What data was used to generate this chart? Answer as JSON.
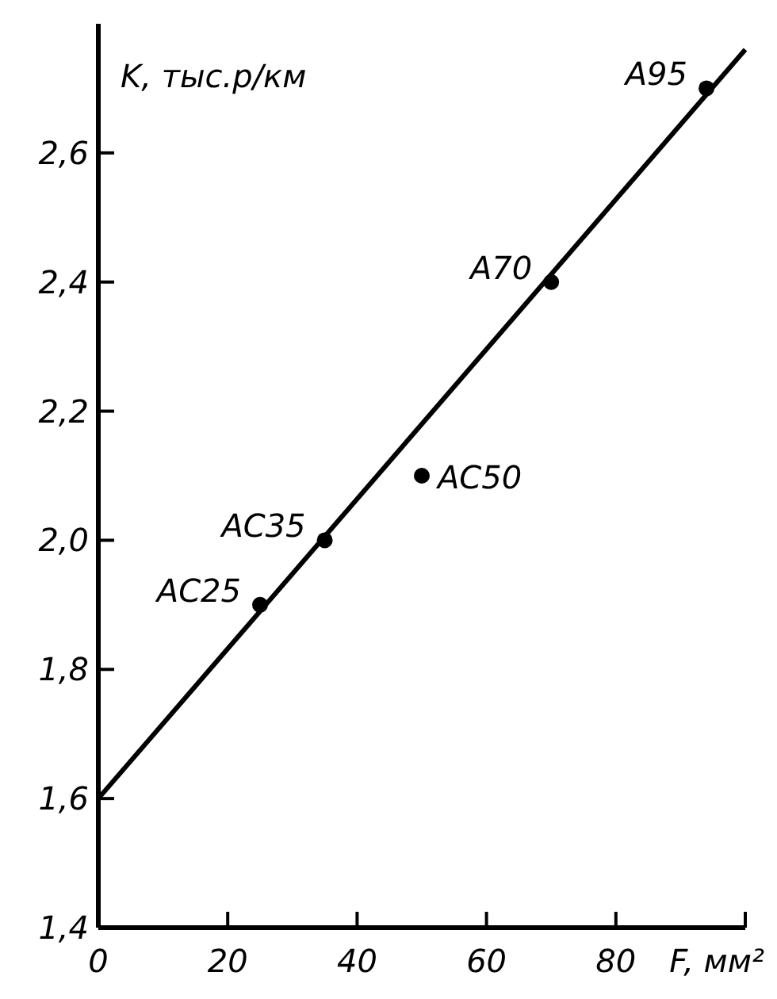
{
  "chart_data": {
    "type": "scatter",
    "xlabel": "F, мм²",
    "ylabel": "K, тыс.р/км",
    "series": [
      {
        "marker": "circle",
        "color": "#000000",
        "x": [
          25,
          35,
          50,
          70,
          94
        ],
        "values": [
          1.9,
          2.0,
          2.1,
          2.4,
          2.7
        ]
      },
      {
        "type": "line",
        "color": "#000000",
        "x": [
          0,
          100
        ],
        "values": [
          1.6,
          2.76
        ]
      }
    ],
    "annotations": [
      {
        "text": "AC25",
        "x": 25,
        "y": 1.9
      },
      {
        "text": "AC35",
        "x": 35,
        "y": 2.0
      },
      {
        "text": "AC50",
        "x": 50,
        "y": 2.1
      },
      {
        "text": "A70",
        "x": 70,
        "y": 2.4
      },
      {
        "text": "A95",
        "x": 94,
        "y": 2.7
      }
    ],
    "line_style": "solid",
    "grid": false,
    "xlim": [
      0,
      100
    ],
    "ylim": [
      1.4,
      2.8
    ],
    "xticks": [
      0,
      20,
      40,
      60,
      80,
      {
        "value": 100,
        "label": null
      }
    ],
    "yticks": [
      {
        "value": 1.4,
        "label": "1,4"
      },
      {
        "value": 1.6,
        "label": "1,6"
      },
      {
        "value": 1.8,
        "label": "1,8"
      },
      {
        "value": 2.0,
        "label": "2,0"
      },
      {
        "value": 2.2,
        "label": "2,2"
      },
      {
        "value": 2.4,
        "label": "2,4"
      },
      {
        "value": 2.6,
        "label": "2,6"
      }
    ]
  }
}
